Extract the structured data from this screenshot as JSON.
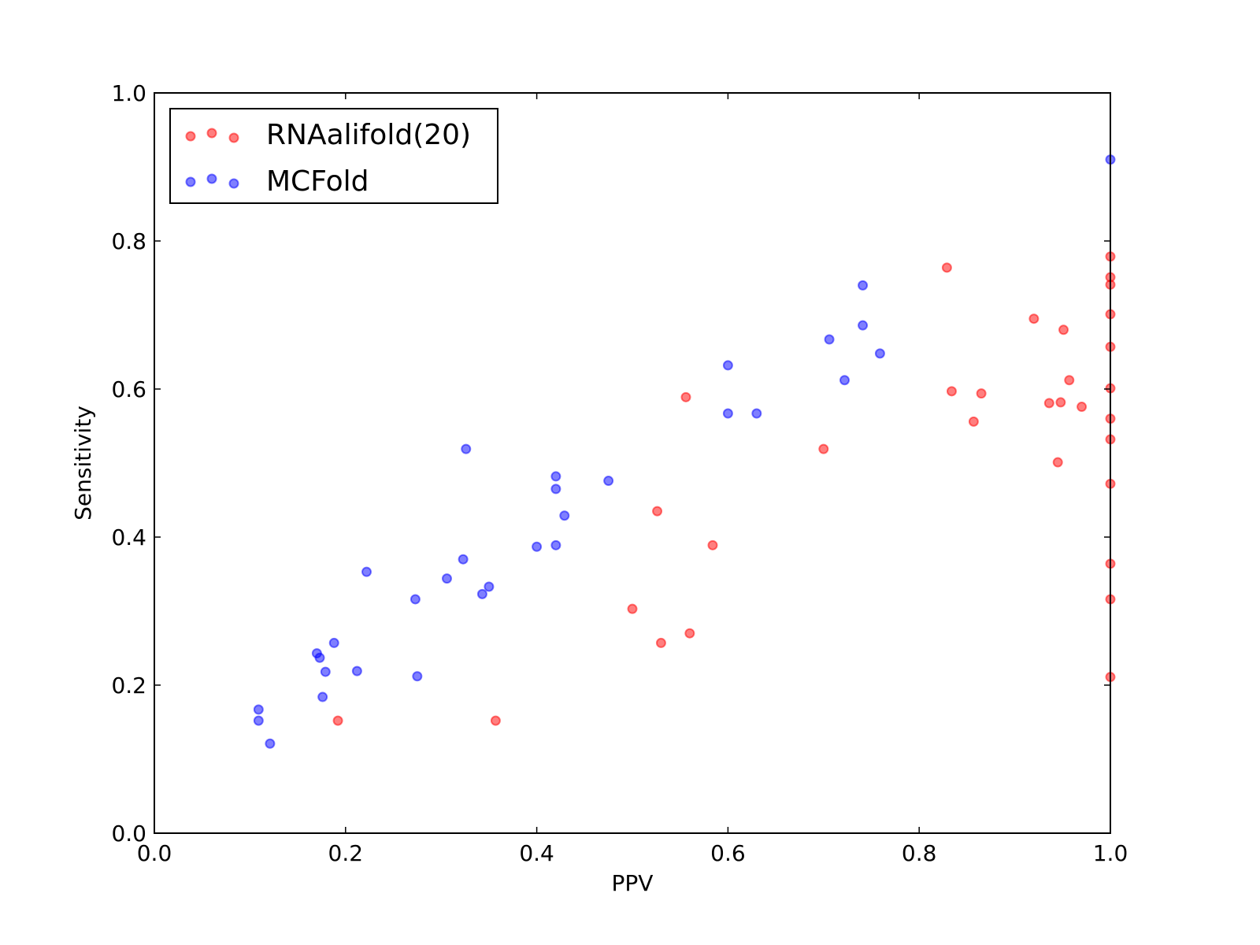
{
  "chart_data": {
    "type": "scatter",
    "title": "",
    "xlabel": "PPV",
    "ylabel": "Sensitivity",
    "xlim": [
      0.0,
      1.0
    ],
    "ylim": [
      0.0,
      1.0
    ],
    "xticks": [
      "0.0",
      "0.2",
      "0.4",
      "0.6",
      "0.8",
      "1.0"
    ],
    "yticks": [
      "0.0",
      "0.2",
      "0.4",
      "0.6",
      "0.8",
      "1.0"
    ],
    "grid": false,
    "legend_position": "top-left",
    "series": [
      {
        "name": "RNAalifold(20)",
        "color": "#ff0000",
        "points": [
          [
            0.829,
            0.764
          ],
          [
            0.92,
            0.695
          ],
          [
            0.951,
            0.68
          ],
          [
            0.957,
            0.612
          ],
          [
            0.834,
            0.597
          ],
          [
            0.865,
            0.594
          ],
          [
            0.936,
            0.581
          ],
          [
            0.948,
            0.582
          ],
          [
            0.97,
            0.576
          ],
          [
            0.857,
            0.556
          ],
          [
            0.945,
            0.501
          ],
          [
            0.556,
            0.589
          ],
          [
            0.7,
            0.519
          ],
          [
            0.526,
            0.435
          ],
          [
            0.584,
            0.389
          ],
          [
            0.5,
            0.303
          ],
          [
            0.53,
            0.257
          ],
          [
            0.56,
            0.27
          ],
          [
            0.192,
            0.152
          ],
          [
            0.357,
            0.152
          ],
          [
            1.0,
            0.779
          ],
          [
            1.0,
            0.751
          ],
          [
            1.0,
            0.741
          ],
          [
            1.0,
            0.701
          ],
          [
            1.0,
            0.657
          ],
          [
            1.0,
            0.601
          ],
          [
            1.0,
            0.56
          ],
          [
            1.0,
            0.532
          ],
          [
            1.0,
            0.472
          ],
          [
            1.0,
            0.364
          ],
          [
            1.0,
            0.316
          ],
          [
            1.0,
            0.211
          ]
        ]
      },
      {
        "name": "MCFold",
        "color": "#0000ff",
        "points": [
          [
            1.0,
            0.91
          ],
          [
            0.741,
            0.74
          ],
          [
            0.741,
            0.686
          ],
          [
            0.706,
            0.667
          ],
          [
            0.759,
            0.648
          ],
          [
            0.722,
            0.612
          ],
          [
            0.6,
            0.632
          ],
          [
            0.6,
            0.567
          ],
          [
            0.63,
            0.567
          ],
          [
            0.326,
            0.519
          ],
          [
            0.42,
            0.482
          ],
          [
            0.42,
            0.465
          ],
          [
            0.475,
            0.476
          ],
          [
            0.429,
            0.429
          ],
          [
            0.4,
            0.387
          ],
          [
            0.42,
            0.389
          ],
          [
            0.323,
            0.37
          ],
          [
            0.306,
            0.344
          ],
          [
            0.35,
            0.333
          ],
          [
            0.343,
            0.323
          ],
          [
            0.222,
            0.353
          ],
          [
            0.273,
            0.316
          ],
          [
            0.275,
            0.212
          ],
          [
            0.188,
            0.257
          ],
          [
            0.17,
            0.243
          ],
          [
            0.173,
            0.237
          ],
          [
            0.179,
            0.218
          ],
          [
            0.212,
            0.219
          ],
          [
            0.176,
            0.184
          ],
          [
            0.109,
            0.167
          ],
          [
            0.109,
            0.152
          ],
          [
            0.121,
            0.121
          ]
        ]
      }
    ]
  }
}
